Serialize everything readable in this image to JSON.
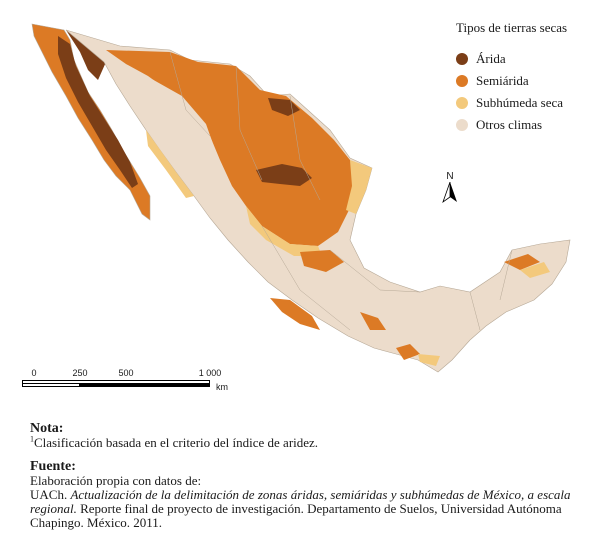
{
  "legend": {
    "title": "Tipos de tierras secas",
    "items": [
      {
        "label": "Árida",
        "color": "#7b3e17"
      },
      {
        "label": "Semiárida",
        "color": "#dc7a25"
      },
      {
        "label": "Subhúmeda seca",
        "color": "#f3c97c"
      },
      {
        "label": "Otros climas",
        "color": "#ecdccb"
      }
    ]
  },
  "north_arrow": {
    "letter": "N"
  },
  "scale_bar": {
    "ticks": [
      "0",
      "250",
      "500",
      "1 000"
    ],
    "unit": "km"
  },
  "note": {
    "heading": "Nota:",
    "superscript": "1",
    "text": "Clasificación basada en el criterio del índice de aridez."
  },
  "source": {
    "heading": "Fuente:",
    "line1": "Elaboración propia con datos de:",
    "line2_prefix": "UACh. ",
    "line2_italic": "Actualización de la delimitación de zonas áridas, semiáridas y subhúmedas de México, a escala regional.",
    "line2_rest": " Reporte final de proyecto de investigación. Departamento de Suelos, Universidad Autónoma Chapingo. México. 2011."
  }
}
